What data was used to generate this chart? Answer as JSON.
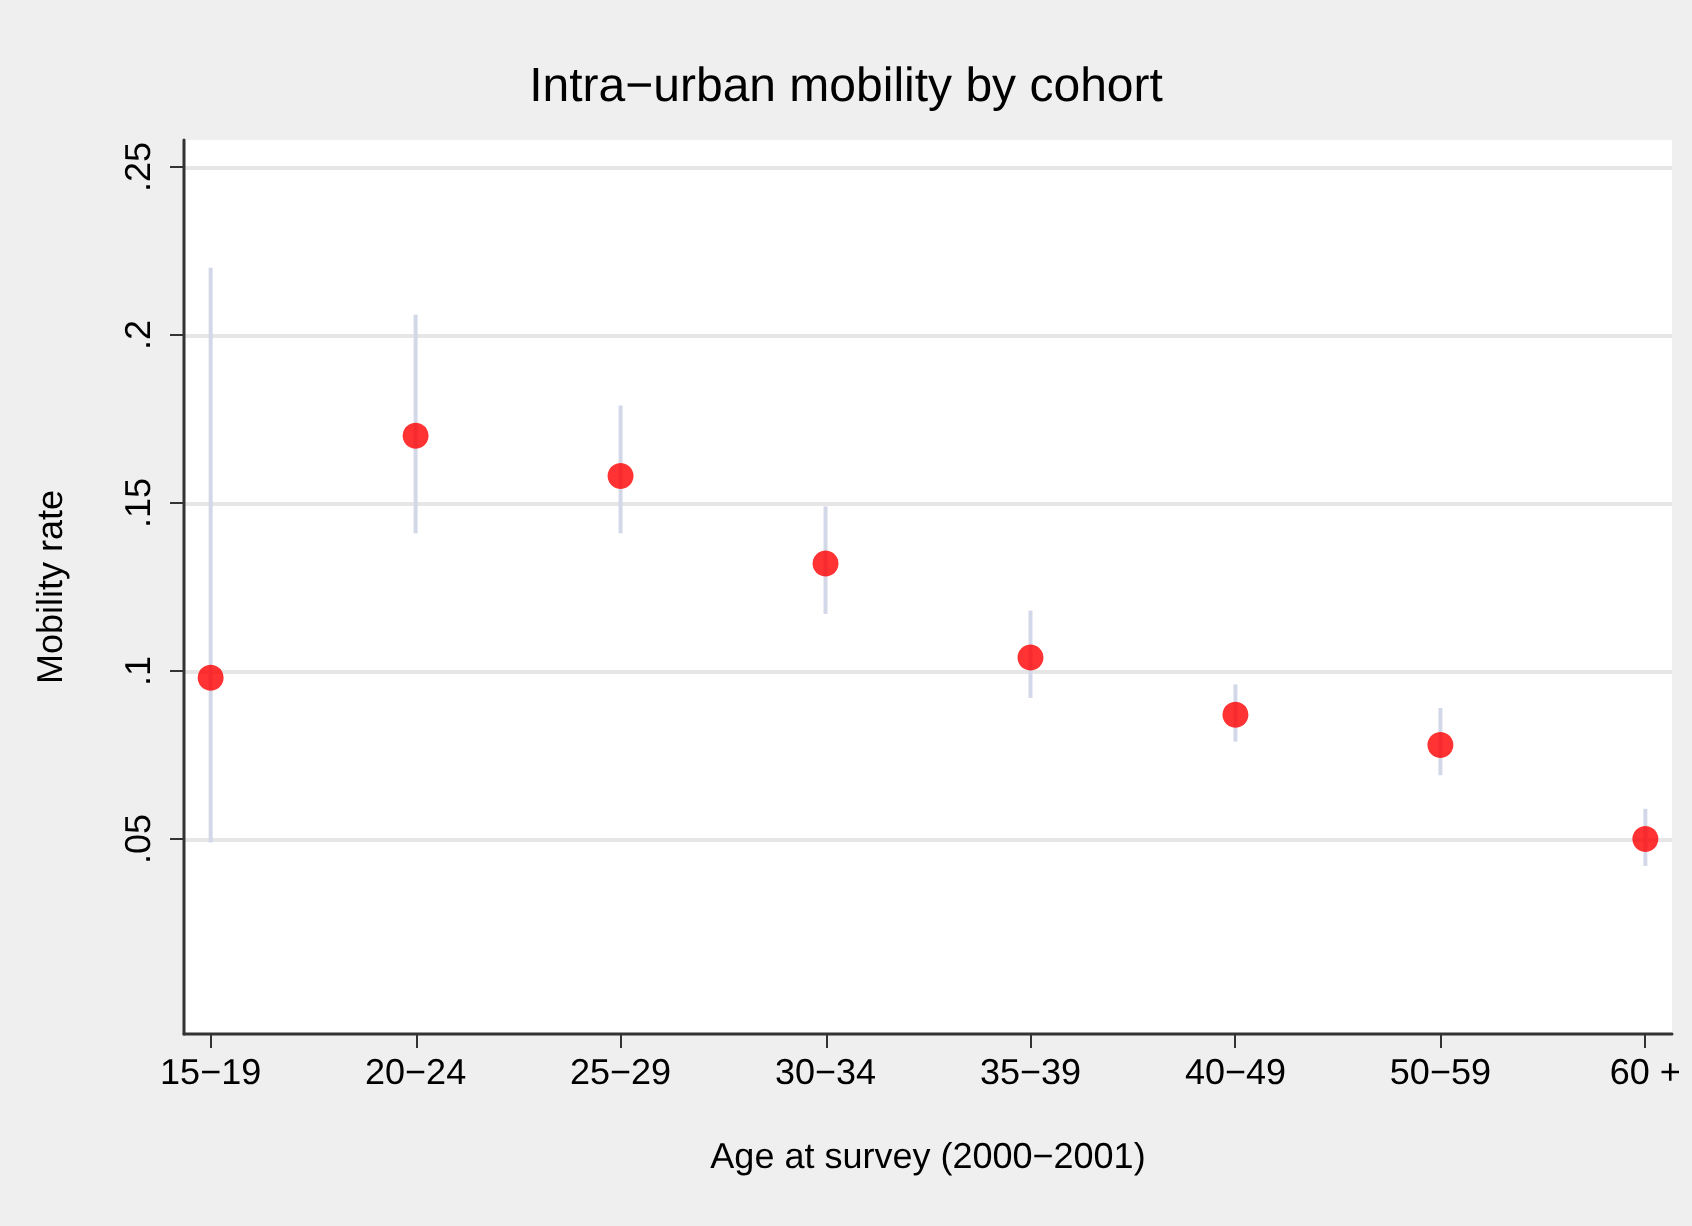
{
  "chart_data": {
    "type": "scatter",
    "title": "Intra−urban mobility by cohort",
    "xlabel": "Age at survey (2000−2001)",
    "ylabel": "Mobility rate",
    "categories": [
      "15−19",
      "20−24",
      "25−29",
      "30−34",
      "35−39",
      "40−49",
      "50−59",
      "60 +"
    ],
    "series": [
      {
        "color": "#ff0000",
        "values": [
          0.098,
          0.17,
          0.158,
          0.132,
          0.104,
          0.087,
          0.078,
          0.05
        ],
        "errors": [
          [
            0.049,
            0.22
          ],
          [
            0.141,
            0.206
          ],
          [
            0.141,
            0.179
          ],
          [
            0.117,
            0.149
          ],
          [
            0.092,
            0.118
          ],
          [
            0.079,
            0.096
          ],
          [
            0.069,
            0.089
          ],
          [
            0.042,
            0.059
          ]
        ]
      }
    ],
    "ylim": [
      -0.008,
      0.258
    ],
    "yticks": [
      {
        "value": 0.05,
        "label": ".05"
      },
      {
        "value": 0.1,
        "label": ".1"
      },
      {
        "value": 0.15,
        "label": ".15"
      },
      {
        "value": 0.2,
        "label": ".2"
      },
      {
        "value": 0.25,
        "label": ".25"
      }
    ],
    "grid": "y",
    "marker": "circle"
  }
}
